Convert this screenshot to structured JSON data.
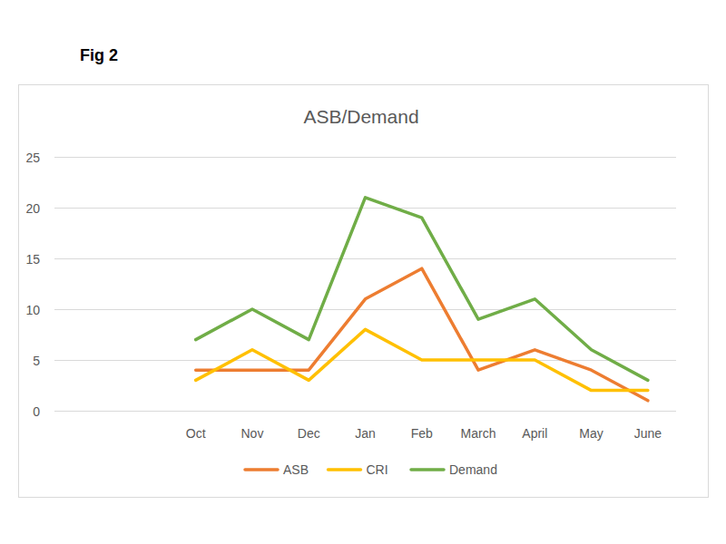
{
  "chart_data": {
    "type": "line",
    "title": "ASB/Demand",
    "annotations": [
      "Fig 2"
    ],
    "categories": [
      null,
      null,
      "Oct",
      "Nov",
      "Dec",
      "Jan",
      "Feb",
      "March",
      "April",
      "May",
      "June"
    ],
    "series": [
      {
        "name": "ASB",
        "color": "#ed7d31",
        "values": [
          null,
          null,
          4,
          4,
          4,
          11,
          14,
          4,
          6,
          4,
          1
        ]
      },
      {
        "name": "CRI",
        "color": "#ffc000",
        "values": [
          null,
          null,
          3,
          6,
          3,
          8,
          5,
          5,
          5,
          2,
          2
        ]
      },
      {
        "name": "Demand",
        "color": "#70ad47",
        "values": [
          null,
          null,
          7,
          10,
          7,
          21,
          19,
          9,
          11,
          6,
          3
        ]
      }
    ],
    "ylim": [
      0,
      25
    ],
    "yticks": [
      0,
      5,
      10,
      15,
      20,
      25
    ],
    "grid": true,
    "legend": "bottom"
  }
}
